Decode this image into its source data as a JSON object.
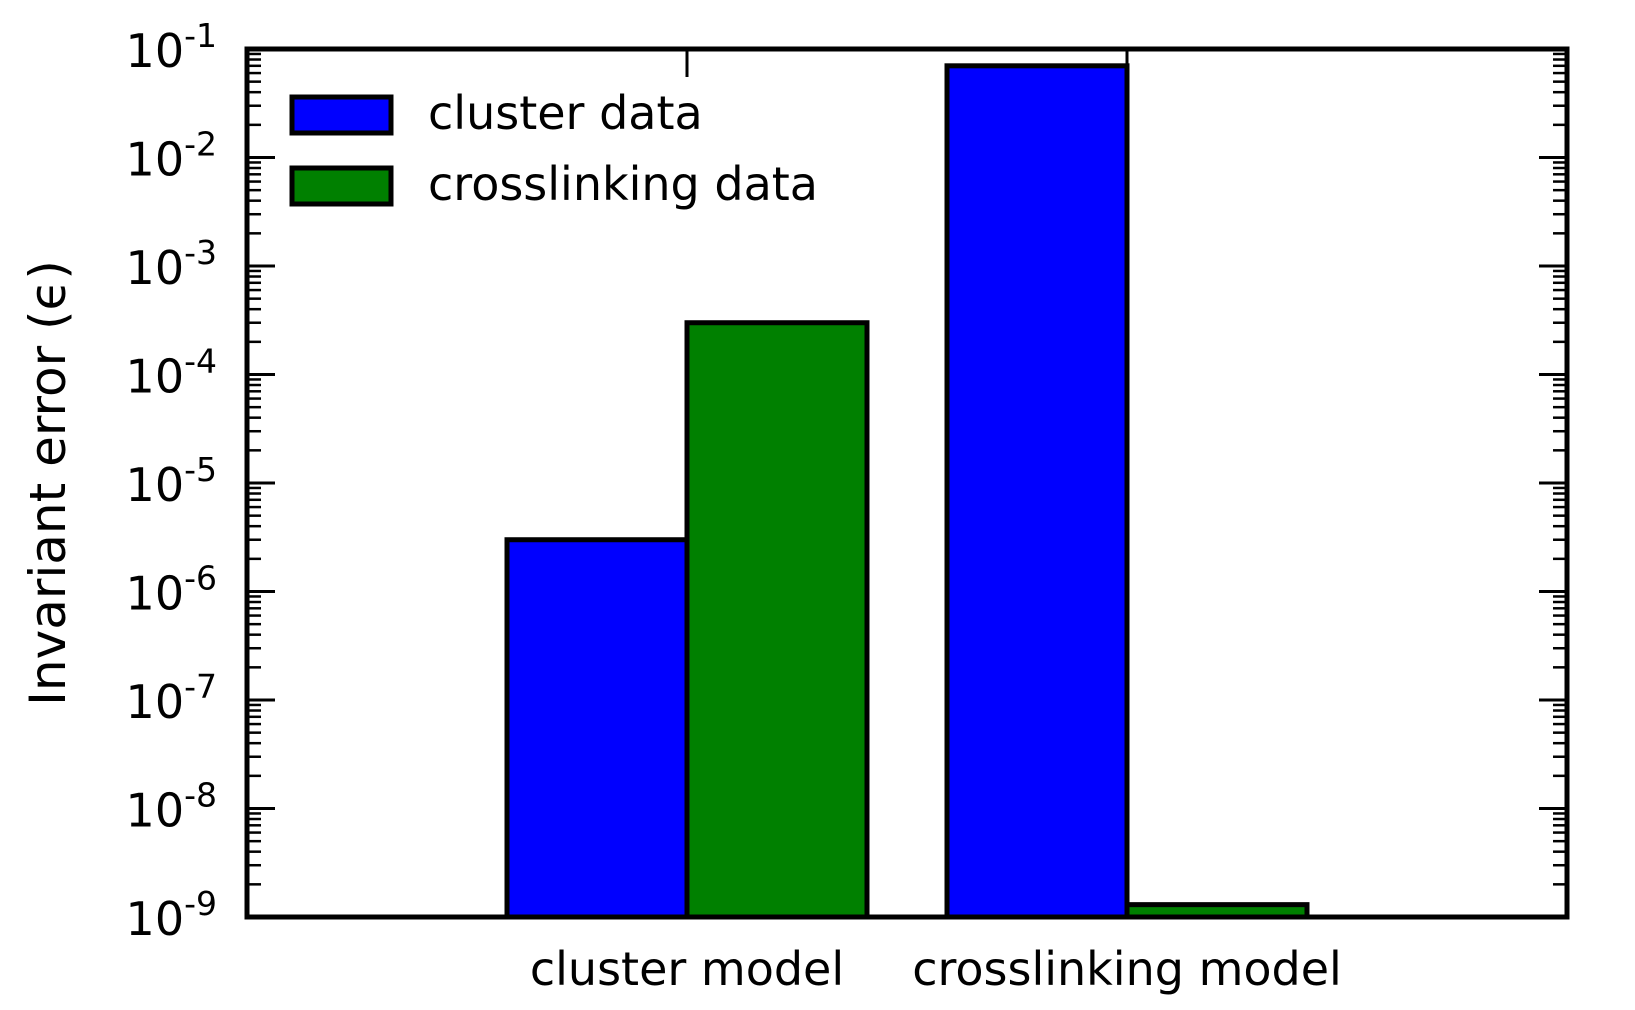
{
  "chart_data": {
    "type": "bar",
    "title": "",
    "xlabel": "",
    "ylabel": "Invariant error (ϵ)",
    "yscale": "log",
    "ylim": [
      1e-09,
      0.1
    ],
    "yticks": [
      {
        "value": 1e-09,
        "base": "10",
        "exp": "-9"
      },
      {
        "value": 1e-08,
        "base": "10",
        "exp": "-8"
      },
      {
        "value": 1e-07,
        "base": "10",
        "exp": "-7"
      },
      {
        "value": 1e-06,
        "base": "10",
        "exp": "-6"
      },
      {
        "value": 1e-05,
        "base": "10",
        "exp": "-5"
      },
      {
        "value": 0.0001,
        "base": "10",
        "exp": "-4"
      },
      {
        "value": 0.001,
        "base": "10",
        "exp": "-3"
      },
      {
        "value": 0.01,
        "base": "10",
        "exp": "-2"
      },
      {
        "value": 0.1,
        "base": "10",
        "exp": "-1"
      }
    ],
    "categories": [
      "cluster model",
      "crosslinking model"
    ],
    "series": [
      {
        "name": "cluster data",
        "color": "#0000ff",
        "values": [
          3e-06,
          0.07
        ]
      },
      {
        "name": "crosslinking data",
        "color": "#008000",
        "values": [
          0.0003,
          1.3e-09
        ]
      }
    ],
    "legend_position": "top-left",
    "grid": false
  }
}
